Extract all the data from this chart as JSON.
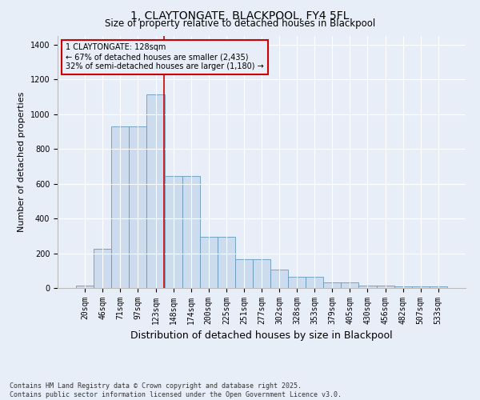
{
  "title": "1, CLAYTONGATE, BLACKPOOL, FY4 5FL",
  "subtitle": "Size of property relative to detached houses in Blackpool",
  "xlabel": "Distribution of detached houses by size in Blackpool",
  "ylabel": "Number of detached properties",
  "bar_labels": [
    "20sqm",
    "46sqm",
    "71sqm",
    "97sqm",
    "123sqm",
    "148sqm",
    "174sqm",
    "200sqm",
    "225sqm",
    "251sqm",
    "277sqm",
    "302sqm",
    "328sqm",
    "353sqm",
    "379sqm",
    "405sqm",
    "430sqm",
    "456sqm",
    "482sqm",
    "507sqm",
    "533sqm"
  ],
  "bar_values": [
    15,
    225,
    930,
    930,
    1115,
    645,
    645,
    295,
    295,
    165,
    165,
    105,
    65,
    65,
    30,
    30,
    15,
    15,
    10,
    10,
    10
  ],
  "bar_color": "#ccdcee",
  "bar_edge_color": "#6699bb",
  "vline_color": "#cc0000",
  "annotation_text": "1 CLAYTONGATE: 128sqm\n← 67% of detached houses are smaller (2,435)\n32% of semi-detached houses are larger (1,180) →",
  "annotation_box_color": "#cc0000",
  "ylim": [
    0,
    1450
  ],
  "yticks": [
    0,
    200,
    400,
    600,
    800,
    1000,
    1200,
    1400
  ],
  "background_color": "#e8eef8",
  "grid_color": "#ffffff",
  "footer_text": "Contains HM Land Registry data © Crown copyright and database right 2025.\nContains public sector information licensed under the Open Government Licence v3.0.",
  "title_fontsize": 10,
  "subtitle_fontsize": 8.5,
  "axis_label_fontsize": 8,
  "tick_fontsize": 7,
  "footer_fontsize": 6
}
